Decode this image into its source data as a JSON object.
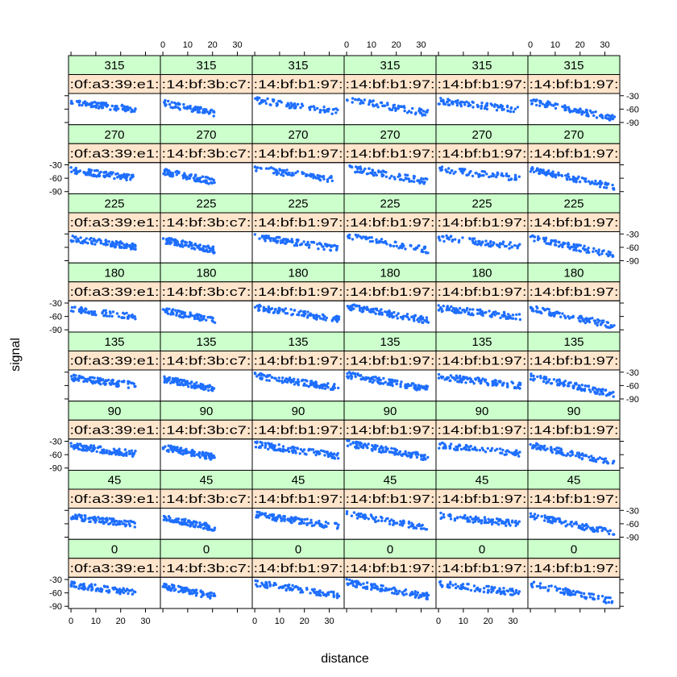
{
  "chart_data": {
    "type": "scatter",
    "layout": "trellis",
    "xlabel": "distance",
    "ylabel": "signal",
    "xlim": [
      -1,
      36
    ],
    "ylim": [
      -95,
      -25
    ],
    "x_ticks": [
      0,
      10,
      20,
      30
    ],
    "y_ticks": [
      -30,
      -60,
      -90
    ],
    "angles": [
      "315",
      "270",
      "225",
      "180",
      "135",
      "90",
      "45",
      "0"
    ],
    "macs": [
      ":0f:a3:39:e1:",
      ":14:bf:3b:c7:",
      ":14:bf:b1:97:",
      ":14:bf:b1:97:",
      ":14:bf:b1:97:",
      ":14:bf:b1:97:"
    ],
    "x_ranges": [
      [
        0,
        26
      ],
      [
        0,
        21
      ],
      [
        0,
        34
      ],
      [
        0,
        33
      ],
      [
        0,
        33
      ],
      [
        0,
        34
      ]
    ],
    "trend_start": [
      -42,
      -45,
      -38,
      -36,
      -40,
      -40
    ],
    "trend_end": [
      -60,
      -68,
      -65,
      -68,
      -60,
      -80
    ],
    "point_color": "#1e6eff",
    "strip_top_color": "#ccffcc",
    "strip_bottom_color": "#ffe5cc"
  }
}
